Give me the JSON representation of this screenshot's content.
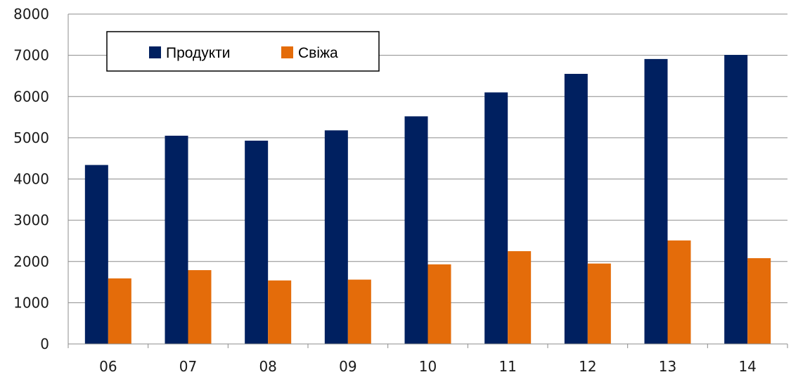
{
  "chart_data": {
    "type": "bar",
    "title": "",
    "xlabel": "",
    "ylabel": "",
    "categories": [
      "06",
      "07",
      "08",
      "09",
      "10",
      "11",
      "12",
      "13",
      "14"
    ],
    "series": [
      {
        "name": "Продукти",
        "color": "#002060",
        "values": [
          4340,
          5050,
          4930,
          5180,
          5520,
          6100,
          6550,
          6910,
          7010
        ]
      },
      {
        "name": "Свіжа",
        "color": "#E46C0A",
        "values": [
          1590,
          1790,
          1540,
          1560,
          1930,
          2250,
          1950,
          2510,
          2080
        ]
      }
    ],
    "ylim": [
      0,
      8000
    ],
    "yticks": [
      "0",
      "1000",
      "2000",
      "3000",
      "4000",
      "5000",
      "6000",
      "7000",
      "8000"
    ],
    "grid": true,
    "legend_position": "top-left"
  }
}
